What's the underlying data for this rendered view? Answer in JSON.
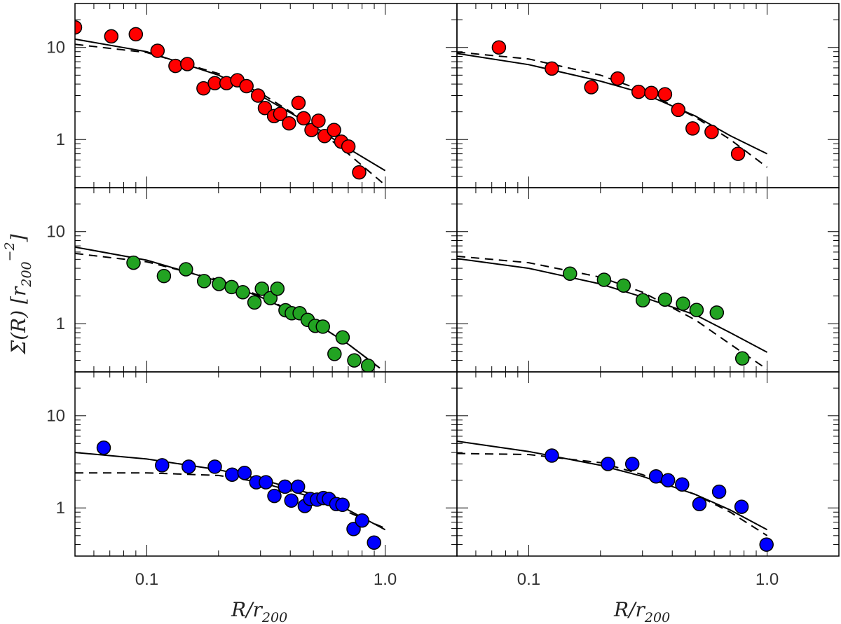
{
  "figure": {
    "xlabel": {
      "main": "R/r",
      "sub": "200"
    },
    "ylabel": {
      "pre": "Σ(R)  [r",
      "sub": "200",
      "sup": "−2",
      "post": "]"
    }
  },
  "chart_data": {
    "type": "scatter",
    "layout": "3 rows × 2 columns, shared axes",
    "x_scale": "log",
    "y_scale": "log",
    "xlim": [
      0.05,
      2.0
    ],
    "ylim": [
      0.3,
      30
    ],
    "x_ticklabels": [
      "0.1",
      "1.0"
    ],
    "y_ticklabels": [
      "1",
      "10"
    ],
    "marker_colors": {
      "red": "#ff0000",
      "green": "#22a322",
      "blue": "#0000ff"
    },
    "panels": [
      {
        "row": 1,
        "col": 1,
        "color": "red",
        "points": [
          [
            0.05,
            16.5
          ],
          [
            0.071,
            13.2
          ],
          [
            0.09,
            13.9
          ],
          [
            0.111,
            9.2
          ],
          [
            0.132,
            6.3
          ],
          [
            0.148,
            6.6
          ],
          [
            0.173,
            3.6
          ],
          [
            0.193,
            4.1
          ],
          [
            0.216,
            4.1
          ],
          [
            0.24,
            4.4
          ],
          [
            0.262,
            3.8
          ],
          [
            0.293,
            3.0
          ],
          [
            0.313,
            2.2
          ],
          [
            0.342,
            1.8
          ],
          [
            0.363,
            1.9
          ],
          [
            0.395,
            1.5
          ],
          [
            0.433,
            2.5
          ],
          [
            0.455,
            1.7
          ],
          [
            0.491,
            1.27
          ],
          [
            0.525,
            1.6
          ],
          [
            0.557,
            1.09
          ],
          [
            0.61,
            1.27
          ],
          [
            0.654,
            0.95
          ],
          [
            0.701,
            0.84
          ],
          [
            0.778,
            0.44
          ]
        ],
        "solid_line": [
          [
            0.05,
            12.3
          ],
          [
            0.1,
            9.0
          ],
          [
            0.2,
            5.0
          ],
          [
            0.3,
            3.0
          ],
          [
            0.5,
            1.4
          ],
          [
            0.7,
            0.8
          ],
          [
            1.0,
            0.46
          ]
        ],
        "dashed_line": [
          [
            0.05,
            10.8
          ],
          [
            0.1,
            8.8
          ],
          [
            0.2,
            5.2
          ],
          [
            0.3,
            3.2
          ],
          [
            0.5,
            1.4
          ],
          [
            0.7,
            0.7
          ],
          [
            1.0,
            0.32
          ]
        ]
      },
      {
        "row": 1,
        "col": 2,
        "color": "red",
        "points": [
          [
            0.075,
            10.0
          ],
          [
            0.125,
            5.9
          ],
          [
            0.183,
            3.7
          ],
          [
            0.236,
            4.6
          ],
          [
            0.289,
            3.3
          ],
          [
            0.327,
            3.2
          ],
          [
            0.373,
            3.1
          ],
          [
            0.424,
            2.1
          ],
          [
            0.487,
            1.32
          ],
          [
            0.585,
            1.21
          ],
          [
            0.755,
            0.7
          ]
        ],
        "solid_line": [
          [
            0.05,
            8.6
          ],
          [
            0.1,
            6.5
          ],
          [
            0.2,
            4.3
          ],
          [
            0.3,
            3.2
          ],
          [
            0.5,
            1.8
          ],
          [
            0.7,
            1.1
          ],
          [
            1.0,
            0.7
          ]
        ],
        "dashed_line": [
          [
            0.05,
            8.9
          ],
          [
            0.1,
            7.5
          ],
          [
            0.2,
            5.0
          ],
          [
            0.3,
            3.4
          ],
          [
            0.5,
            1.75
          ],
          [
            0.7,
            1.0
          ],
          [
            1.0,
            0.5
          ]
        ]
      },
      {
        "row": 2,
        "col": 1,
        "color": "green",
        "points": [
          [
            0.088,
            4.6
          ],
          [
            0.118,
            3.3
          ],
          [
            0.146,
            3.9
          ],
          [
            0.174,
            2.9
          ],
          [
            0.201,
            2.7
          ],
          [
            0.227,
            2.5
          ],
          [
            0.253,
            2.2
          ],
          [
            0.283,
            1.7
          ],
          [
            0.304,
            2.4
          ],
          [
            0.33,
            1.9
          ],
          [
            0.353,
            2.4
          ],
          [
            0.382,
            1.4
          ],
          [
            0.406,
            1.3
          ],
          [
            0.438,
            1.3
          ],
          [
            0.473,
            1.1
          ],
          [
            0.509,
            0.95
          ],
          [
            0.548,
            0.93
          ],
          [
            0.613,
            0.47
          ],
          [
            0.663,
            0.71
          ],
          [
            0.742,
            0.4
          ],
          [
            0.848,
            0.35
          ]
        ],
        "solid_line": [
          [
            0.05,
            6.8
          ],
          [
            0.1,
            4.9
          ],
          [
            0.2,
            2.9
          ],
          [
            0.3,
            1.95
          ],
          [
            0.5,
            1.05
          ],
          [
            0.7,
            0.6
          ],
          [
            0.95,
            0.33
          ]
        ],
        "dashed_line": [
          [
            0.05,
            5.8
          ],
          [
            0.1,
            4.7
          ],
          [
            0.2,
            3.0
          ],
          [
            0.3,
            2.0
          ],
          [
            0.5,
            1.05
          ],
          [
            0.7,
            0.6
          ],
          [
            0.95,
            0.33
          ]
        ]
      },
      {
        "row": 2,
        "col": 2,
        "color": "green",
        "points": [
          [
            0.149,
            3.5
          ],
          [
            0.207,
            3.0
          ],
          [
            0.25,
            2.6
          ],
          [
            0.301,
            1.8
          ],
          [
            0.373,
            1.83
          ],
          [
            0.444,
            1.65
          ],
          [
            0.506,
            1.41
          ],
          [
            0.615,
            1.32
          ],
          [
            0.787,
            0.42
          ]
        ],
        "solid_line": [
          [
            0.05,
            5.1
          ],
          [
            0.1,
            4.0
          ],
          [
            0.2,
            2.7
          ],
          [
            0.3,
            1.95
          ],
          [
            0.5,
            1.25
          ],
          [
            0.7,
            0.8
          ],
          [
            1.0,
            0.49
          ]
        ],
        "dashed_line": [
          [
            0.05,
            5.4
          ],
          [
            0.1,
            4.6
          ],
          [
            0.2,
            3.2
          ],
          [
            0.3,
            2.2
          ],
          [
            0.5,
            1.1
          ],
          [
            0.7,
            0.6
          ],
          [
            1.0,
            0.32
          ]
        ]
      },
      {
        "row": 3,
        "col": 1,
        "color": "blue",
        "points": [
          [
            0.066,
            4.5
          ],
          [
            0.116,
            2.9
          ],
          [
            0.15,
            2.8
          ],
          [
            0.193,
            2.8
          ],
          [
            0.228,
            2.3
          ],
          [
            0.257,
            2.4
          ],
          [
            0.288,
            1.9
          ],
          [
            0.316,
            1.9
          ],
          [
            0.343,
            1.35
          ],
          [
            0.38,
            1.7
          ],
          [
            0.404,
            1.2
          ],
          [
            0.431,
            1.7
          ],
          [
            0.46,
            1.05
          ],
          [
            0.485,
            1.25
          ],
          [
            0.518,
            1.23
          ],
          [
            0.551,
            1.28
          ],
          [
            0.581,
            1.25
          ],
          [
            0.624,
            1.1
          ],
          [
            0.662,
            1.08
          ],
          [
            0.737,
            0.59
          ],
          [
            0.8,
            0.73
          ],
          [
            0.898,
            0.42
          ]
        ],
        "solid_line": [
          [
            0.05,
            4.0
          ],
          [
            0.1,
            3.4
          ],
          [
            0.2,
            2.6
          ],
          [
            0.3,
            2.05
          ],
          [
            0.5,
            1.4
          ],
          [
            0.7,
            0.95
          ],
          [
            1.0,
            0.58
          ]
        ],
        "dashed_line": [
          [
            0.05,
            2.4
          ],
          [
            0.1,
            2.4
          ],
          [
            0.2,
            2.25
          ],
          [
            0.3,
            1.9
          ],
          [
            0.5,
            1.3
          ],
          [
            0.7,
            0.9
          ],
          [
            1.0,
            0.6
          ]
        ]
      },
      {
        "row": 3,
        "col": 2,
        "color": "blue",
        "points": [
          [
            0.125,
            3.7
          ],
          [
            0.215,
            3.0
          ],
          [
            0.272,
            3.0
          ],
          [
            0.342,
            2.2
          ],
          [
            0.384,
            2.0
          ],
          [
            0.44,
            1.8
          ],
          [
            0.52,
            1.1
          ],
          [
            0.629,
            1.5
          ],
          [
            0.781,
            1.03
          ],
          [
            0.994,
            0.4
          ]
        ],
        "solid_line": [
          [
            0.05,
            5.3
          ],
          [
            0.1,
            4.1
          ],
          [
            0.2,
            2.9
          ],
          [
            0.3,
            2.2
          ],
          [
            0.5,
            1.4
          ],
          [
            0.7,
            0.95
          ],
          [
            1.0,
            0.58
          ]
        ],
        "dashed_line": [
          [
            0.05,
            3.9
          ],
          [
            0.1,
            3.8
          ],
          [
            0.2,
            3.1
          ],
          [
            0.3,
            2.3
          ],
          [
            0.5,
            1.4
          ],
          [
            0.7,
            0.9
          ],
          [
            1.0,
            0.5
          ]
        ]
      }
    ]
  }
}
